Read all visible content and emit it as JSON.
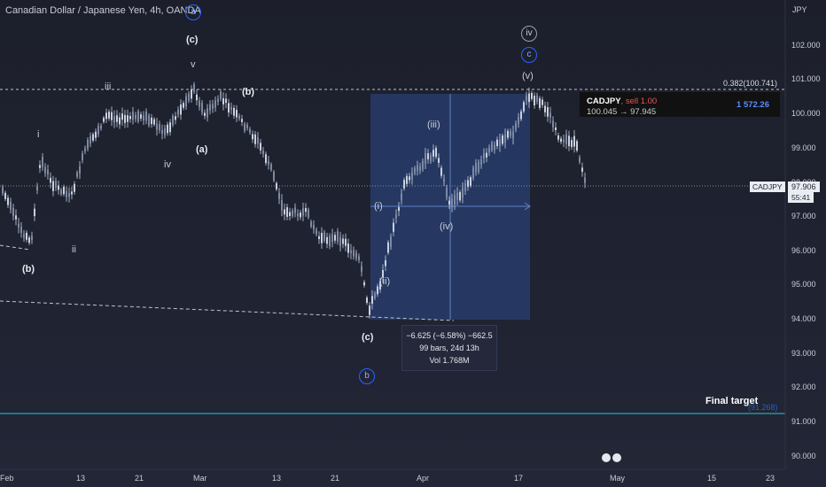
{
  "header": {
    "title": "Canadian Dollar / Japanese Yen, 4h, OANDA",
    "badge_a": "a"
  },
  "price_axis": {
    "currency": "JPY",
    "ticks": [
      "102.000",
      "101.000",
      "100.000",
      "99.000",
      "98.000",
      "97.000",
      "96.000",
      "95.000",
      "94.000",
      "93.000",
      "92.000",
      "91.000",
      "90.000"
    ]
  },
  "time_axis": {
    "ticks": [
      "Feb",
      "13",
      "21",
      "Mar",
      "13",
      "21",
      "Apr",
      "17",
      "May",
      "15",
      "23"
    ]
  },
  "fib": {
    "label": "0.382(100.741)"
  },
  "current_price": {
    "symbol": "CADJPY",
    "price": "97.906",
    "countdown": "55:41"
  },
  "position_tooltip": {
    "symbol": "CADJPY",
    "side": "sell 1.00",
    "range": "100.045 → 97.945",
    "pnl": "1 572.26"
  },
  "measurement": {
    "line1": "−6.625 (−6.58%) −662.5",
    "line2": "99 bars, 24d 13h",
    "line3": "Vol 1.768M"
  },
  "final_target": {
    "label": "Final target",
    "value": "(91.268)"
  },
  "wave_labels": {
    "c_top": "(c)",
    "v_top": "v",
    "iii_sub": "iii",
    "i_sub": "i",
    "ii_sub": "ii",
    "iv_sub": "iv",
    "b_left": "(b)",
    "a_mid": "(a)",
    "b_mid": "(b)",
    "c_low": "(c)",
    "i_paren": "(i)",
    "ii_paren": "(ii)",
    "iii_paren": "(iii)",
    "iv_paren": "(iv)",
    "v_paren": "(v)",
    "iv_circle": "iv",
    "c_circle": "c",
    "b_circle": "b"
  },
  "colors": {
    "background": "#1e2230",
    "accent_blue": "#2962ff",
    "measure_fill": "#2a3f7a",
    "candle": "#c9d1e0",
    "target_line": "#26c6da",
    "fib_line": "#c0c4cc"
  }
}
